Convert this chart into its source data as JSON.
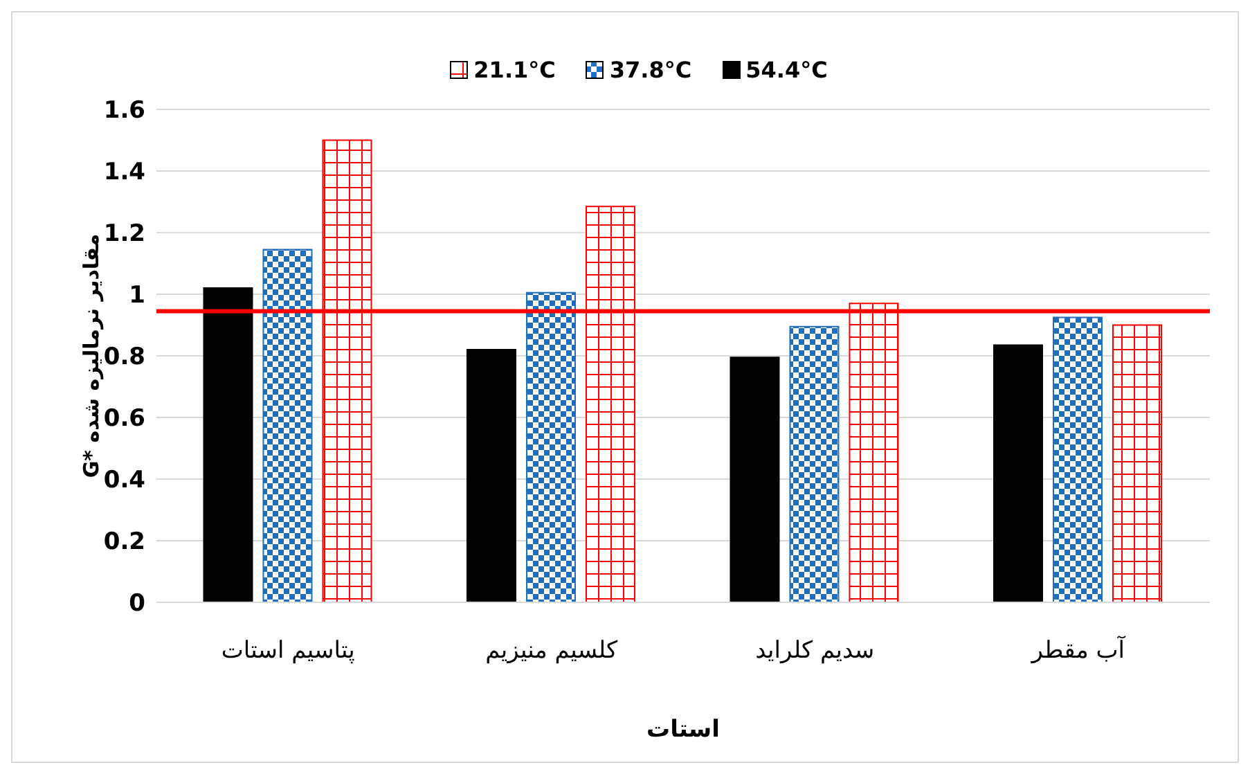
{
  "chart_data": {
    "type": "bar",
    "xlabel": "استات",
    "ylabel": "G* مقادیر نرمالیزه شده",
    "categories": [
      "پتاسیم استات",
      "کلسیم منیزیم",
      "سدیم کلراید",
      "آب مقطر"
    ],
    "series": [
      {
        "name": "54.4°C",
        "color": "#000000",
        "values": [
          1.02,
          0.82,
          0.795,
          0.835
        ]
      },
      {
        "name": "37.8°C",
        "color": "#1f6fc0",
        "values": [
          1.145,
          1.005,
          0.895,
          0.925
        ]
      },
      {
        "name": "21.1°C",
        "color": "#ff0000",
        "values": [
          1.5,
          1.285,
          0.97,
          0.9
        ]
      }
    ],
    "ylim": [
      0,
      1.6
    ],
    "yticks": [
      0,
      0.2,
      0.4,
      0.6,
      0.8,
      1,
      1.2,
      1.4,
      1.6
    ],
    "grid": "y",
    "legend": "top",
    "ref_lines": [
      {
        "axis": "y",
        "value": 0.945,
        "color": "#ff0000"
      }
    ]
  }
}
